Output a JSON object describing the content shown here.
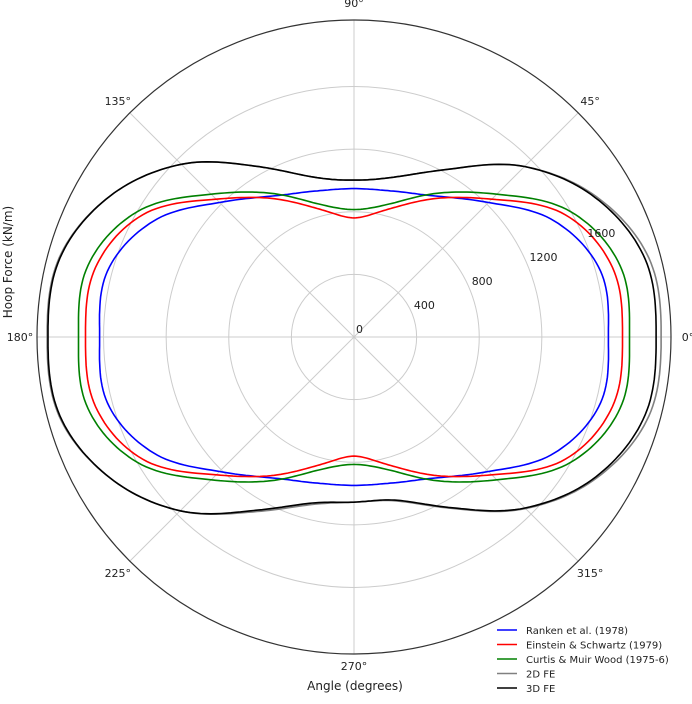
{
  "chart_data": {
    "type": "line",
    "projection": "polar",
    "xlabel": "Angle (degrees)",
    "ylabel": "Hoop Force (kN/m)",
    "angle_unit": "degrees",
    "rlim": [
      0,
      2025
    ],
    "radial_ticks": [
      0,
      400,
      800,
      1200,
      1600
    ],
    "radial_tick_labels": [
      "0",
      "400",
      "800",
      "1200",
      "1600"
    ],
    "angular_ticks": [
      0,
      45,
      90,
      135,
      180,
      225,
      270,
      315
    ],
    "angular_tick_labels": [
      "0°",
      "45°",
      "90°",
      "135°",
      "180°",
      "225°",
      "270°",
      "315°"
    ],
    "grid": true,
    "legend_position": "bottom-right",
    "theta": [
      0,
      15,
      30,
      45,
      60,
      75,
      90,
      105,
      120,
      135,
      150,
      165,
      180,
      195,
      210,
      225,
      240,
      255,
      270,
      285,
      300,
      315,
      330,
      345
    ],
    "series": [
      {
        "name": "Ranken et al. (1978)",
        "color": "#0000ff",
        "values": [
          1625,
          1630,
          1480,
          1215,
          1040,
          965,
          948,
          965,
          1040,
          1215,
          1480,
          1630,
          1625,
          1630,
          1480,
          1215,
          1040,
          965,
          948,
          965,
          1040,
          1215,
          1480,
          1630
        ]
      },
      {
        "name": "Einstein & Schwartz (1979)",
        "color": "#ff0000",
        "values": [
          1715,
          1710,
          1560,
          1245,
          1020,
          845,
          761,
          845,
          1020,
          1245,
          1560,
          1710,
          1715,
          1710,
          1560,
          1245,
          1020,
          845,
          761,
          845,
          1020,
          1245,
          1560,
          1710
        ]
      },
      {
        "name": "Curtis & Muir Wood (1975-6)",
        "color": "#008000",
        "values": [
          1760,
          1760,
          1600,
          1290,
          1060,
          880,
          814,
          880,
          1060,
          1290,
          1600,
          1760,
          1760,
          1760,
          1600,
          1290,
          1060,
          880,
          814,
          880,
          1060,
          1290,
          1600,
          1760
        ]
      },
      {
        "name": "2D FE",
        "color": "#808080",
        "values": [
          1962,
          1950,
          1790,
          1540,
          1240,
          1060,
          1002,
          1060,
          1260,
          1560,
          1800,
          1950,
          1960,
          1950,
          1800,
          1570,
          1290,
          1110,
          1055,
          1085,
          1265,
          1550,
          1795,
          1950
        ]
      },
      {
        "name": "3D FE",
        "color": "#000000",
        "values": [
          1930,
          1925,
          1780,
          1540,
          1240,
          1060,
          1002,
          1060,
          1260,
          1560,
          1800,
          1945,
          1955,
          1945,
          1800,
          1570,
          1280,
          1100,
          1055,
          1080,
          1260,
          1545,
          1785,
          1925
        ]
      }
    ]
  }
}
